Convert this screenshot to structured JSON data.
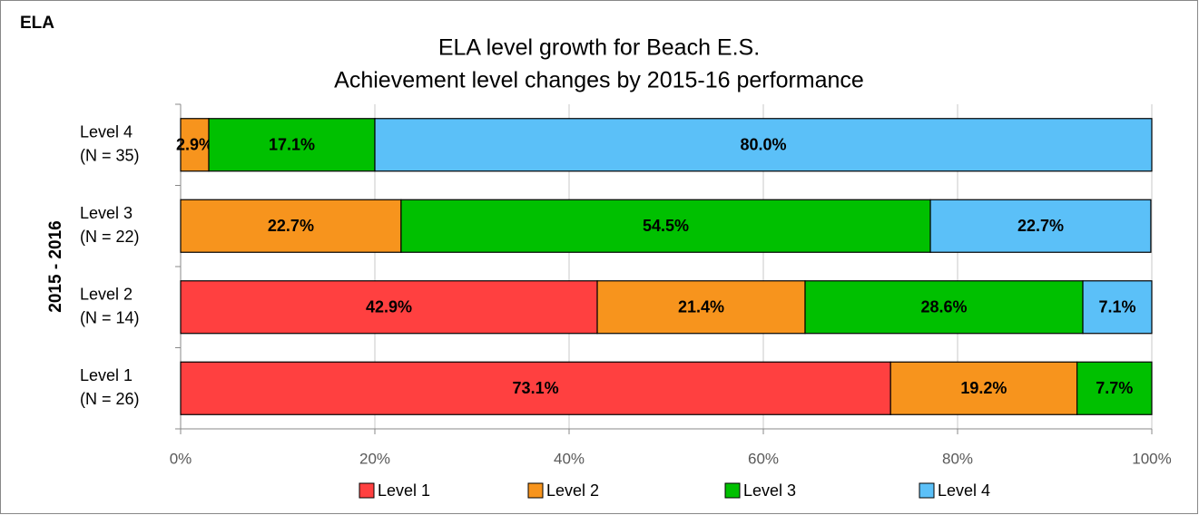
{
  "corner_label": "ELA",
  "chart_data": {
    "type": "stacked_barh",
    "title": "ELA level growth for Beach E.S.",
    "subtitle": "Achievement level changes by 2015-16 performance",
    "y_label": "2015 - 2016",
    "categories": [
      [
        "Level 1",
        "(N = 26)"
      ],
      [
        "Level 2",
        "(N = 14)"
      ],
      [
        "Level 3",
        "(N = 22)"
      ],
      [
        "Level 4",
        "(N = 35)"
      ]
    ],
    "series": [
      {
        "name": "Level 1",
        "color": "#ff4040",
        "values": [
          73.1,
          42.9,
          null,
          null
        ],
        "value_labels": [
          "73.1%",
          "42.9%",
          null,
          null
        ]
      },
      {
        "name": "Level 2",
        "color": "#f7941d",
        "values": [
          19.2,
          21.4,
          22.7,
          2.9
        ],
        "value_labels": [
          "19.2%",
          "21.4%",
          "22.7%",
          "2.9%"
        ]
      },
      {
        "name": "Level 3",
        "color": "#00c000",
        "values": [
          7.7,
          28.6,
          54.5,
          17.1
        ],
        "value_labels": [
          "7.7%",
          "28.6%",
          "54.5%",
          "17.1%"
        ]
      },
      {
        "name": "Level 4",
        "color": "#5bc0f8",
        "values": [
          null,
          7.1,
          22.7,
          80.0
        ],
        "value_labels": [
          null,
          "7.1%",
          "22.7%",
          "80.0%"
        ]
      }
    ],
    "xlim": [
      0,
      100
    ],
    "xticks": [
      {
        "value": 0,
        "label": "0%"
      },
      {
        "value": 20,
        "label": "20%"
      },
      {
        "value": 40,
        "label": "40%"
      },
      {
        "value": 60,
        "label": "60%"
      },
      {
        "value": 80,
        "label": "80%"
      },
      {
        "value": 100,
        "label": "100%"
      }
    ],
    "grid": true,
    "legend": "bottom"
  }
}
